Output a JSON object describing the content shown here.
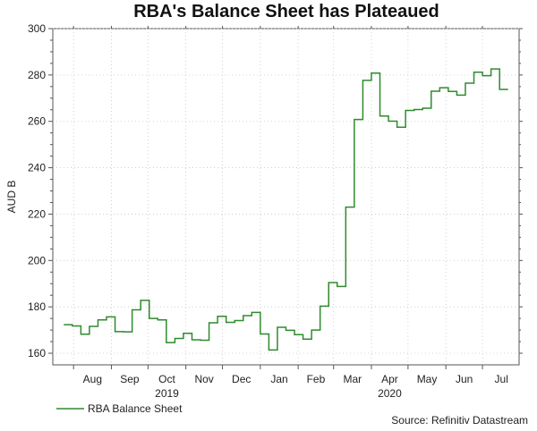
{
  "chart_data": {
    "type": "line",
    "title": "RBA's Balance Sheet has Plateaued",
    "ylabel": "AUD B",
    "xlabel": "",
    "ylim": [
      155,
      300
    ],
    "yticks": [
      160,
      180,
      200,
      220,
      240,
      260,
      280,
      300
    ],
    "grid": true,
    "legend_position": "bottom-left",
    "month_ticks": [
      "Aug",
      "Sep",
      "Oct",
      "Nov",
      "Dec",
      "Jan",
      "Feb",
      "Mar",
      "Apr",
      "May",
      "Jun",
      "Jul"
    ],
    "year_labels": [
      {
        "label": "2019",
        "under_month": "Oct"
      },
      {
        "label": "2020",
        "under_month": "Apr"
      }
    ],
    "series": [
      {
        "name": "RBA Balance Sheet",
        "color": "#2e8b2e",
        "x_start": "2019-07-24",
        "interval": "weekly",
        "values": [
          172.3,
          171.8,
          168.2,
          171.6,
          174.4,
          175.7,
          169.3,
          169.2,
          178.7,
          182.8,
          175.0,
          174.4,
          164.6,
          166.4,
          168.6,
          165.8,
          165.6,
          173.1,
          175.9,
          173.3,
          174.1,
          176.2,
          177.6,
          168.3,
          161.4,
          171.2,
          169.9,
          168.0,
          166.1,
          170.0,
          180.3,
          190.5,
          188.8,
          223.0,
          260.8,
          277.7,
          280.8,
          262.3,
          260.1,
          257.5,
          264.7,
          265.1,
          265.7,
          273.0,
          274.5,
          272.9,
          271.3,
          276.5,
          281.2,
          279.7,
          282.6,
          273.8
        ]
      }
    ]
  },
  "source_note": "Source: Refinitiv Datastream"
}
